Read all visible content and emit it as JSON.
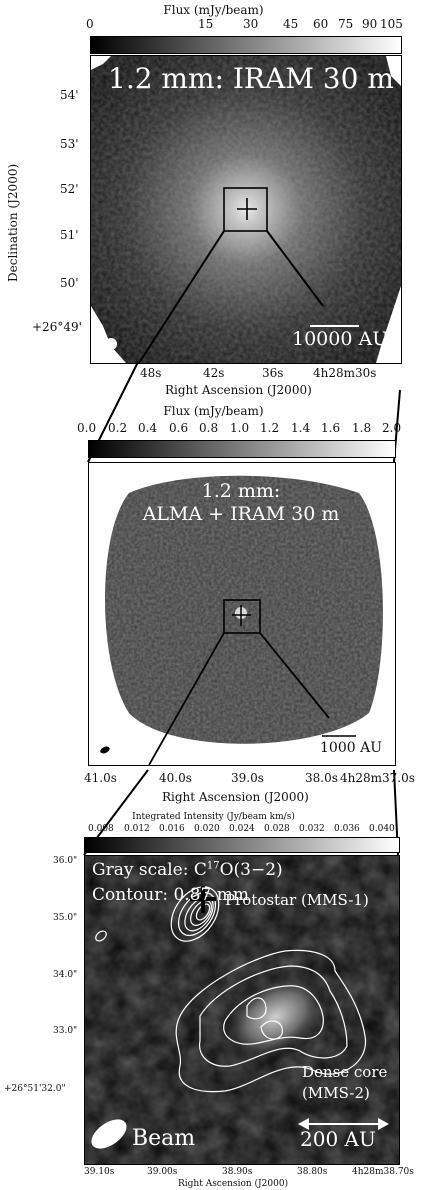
{
  "panel1": {
    "colorbar_label": "Flux (mJy/beam)",
    "colorbar_ticks": [
      "0",
      "15",
      "30",
      "45",
      "60",
      "75",
      "90",
      "105"
    ],
    "title": "1.2 mm: IRAM 30 m",
    "scalebar_label": "10000 AU",
    "ylabel": "Declination (J2000)",
    "yticks": [
      "54'",
      "53'",
      "52'",
      "51'",
      "50'",
      "+26°49'"
    ],
    "xticks": [
      "48s",
      "42s",
      "36s",
      "4h28m30s"
    ],
    "xlabel": "Right Ascension (J2000)"
  },
  "panel2": {
    "colorbar_label": "Flux (mJy/beam)",
    "colorbar_ticks": [
      "0.0",
      "0.2",
      "0.4",
      "0.6",
      "0.8",
      "1.0",
      "1.2",
      "1.4",
      "1.6",
      "1.8",
      "2.0"
    ],
    "title_line1": "1.2 mm:",
    "title_line2": "ALMA  + IRAM 30 m",
    "scalebar_label": "1000 AU",
    "xticks": [
      "41.0s",
      "40.0s",
      "39.0s",
      "38.0s",
      "4h28m37.0s"
    ],
    "xlabel": "Right Ascension (J2000)"
  },
  "panel3": {
    "colorbar_label": "Integrated Intensity (Jy/beam km/s)",
    "colorbar_ticks": [
      "0.008",
      "0.012",
      "0.016",
      "0.020",
      "0.024",
      "0.028",
      "0.032",
      "0.036",
      "0.040"
    ],
    "gray_scale_prefix": "Gray scale: C",
    "gray_scale_sup": "17",
    "gray_scale_suffix": "O(3−2)",
    "contour_label": "Contour: 0.87 mm",
    "protostar_label": "Protostar (MMS-1)",
    "dense_core_line1": "Dense core",
    "dense_core_line2": "(MMS-2)",
    "beam_label": "Beam",
    "scalebar_label": "200 AU",
    "yticks": [
      "36.0\"",
      "35.0\"",
      "34.0\"",
      "33.0\"",
      "+26°51'32.0\""
    ],
    "xticks": [
      "39.10s",
      "39.00s",
      "38.90s",
      "38.80s",
      "4h28m38.70s"
    ],
    "xlabel": "Right Ascension (J2000)"
  }
}
